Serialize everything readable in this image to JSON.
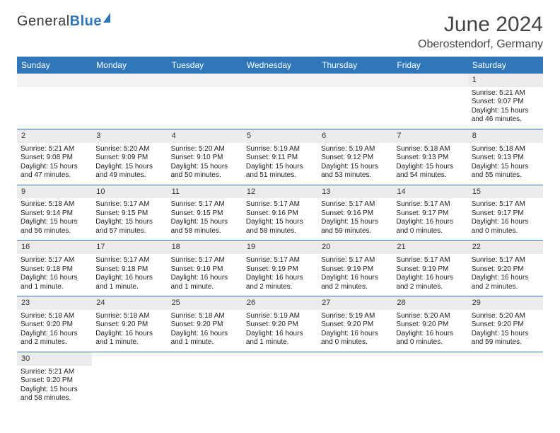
{
  "logo": {
    "word1": "General",
    "word2": "Blue"
  },
  "title": "June 2024",
  "subtitle": "Oberostendorf, Germany",
  "columns": [
    "Sunday",
    "Monday",
    "Tuesday",
    "Wednesday",
    "Thursday",
    "Friday",
    "Saturday"
  ],
  "colors": {
    "header_bg": "#2f77b8",
    "header_text": "#ffffff",
    "daynum_bg": "#ececec",
    "row_border": "#2f77b8",
    "empty_bg": "#f2f2f2",
    "text": "#222222",
    "title_text": "#444444"
  },
  "typography": {
    "title_fontsize": 30,
    "subtitle_fontsize": 16,
    "header_fontsize": 12,
    "cell_fontsize": 10,
    "daynum_fontsize": 11
  },
  "weeks": [
    [
      null,
      null,
      null,
      null,
      null,
      null,
      {
        "day": "1",
        "sunrise": "Sunrise: 5:21 AM",
        "sunset": "Sunset: 9:07 PM",
        "daylight": "Daylight: 15 hours and 46 minutes."
      }
    ],
    [
      {
        "day": "2",
        "sunrise": "Sunrise: 5:21 AM",
        "sunset": "Sunset: 9:08 PM",
        "daylight": "Daylight: 15 hours and 47 minutes."
      },
      {
        "day": "3",
        "sunrise": "Sunrise: 5:20 AM",
        "sunset": "Sunset: 9:09 PM",
        "daylight": "Daylight: 15 hours and 49 minutes."
      },
      {
        "day": "4",
        "sunrise": "Sunrise: 5:20 AM",
        "sunset": "Sunset: 9:10 PM",
        "daylight": "Daylight: 15 hours and 50 minutes."
      },
      {
        "day": "5",
        "sunrise": "Sunrise: 5:19 AM",
        "sunset": "Sunset: 9:11 PM",
        "daylight": "Daylight: 15 hours and 51 minutes."
      },
      {
        "day": "6",
        "sunrise": "Sunrise: 5:19 AM",
        "sunset": "Sunset: 9:12 PM",
        "daylight": "Daylight: 15 hours and 53 minutes."
      },
      {
        "day": "7",
        "sunrise": "Sunrise: 5:18 AM",
        "sunset": "Sunset: 9:13 PM",
        "daylight": "Daylight: 15 hours and 54 minutes."
      },
      {
        "day": "8",
        "sunrise": "Sunrise: 5:18 AM",
        "sunset": "Sunset: 9:13 PM",
        "daylight": "Daylight: 15 hours and 55 minutes."
      }
    ],
    [
      {
        "day": "9",
        "sunrise": "Sunrise: 5:18 AM",
        "sunset": "Sunset: 9:14 PM",
        "daylight": "Daylight: 15 hours and 56 minutes."
      },
      {
        "day": "10",
        "sunrise": "Sunrise: 5:17 AM",
        "sunset": "Sunset: 9:15 PM",
        "daylight": "Daylight: 15 hours and 57 minutes."
      },
      {
        "day": "11",
        "sunrise": "Sunrise: 5:17 AM",
        "sunset": "Sunset: 9:15 PM",
        "daylight": "Daylight: 15 hours and 58 minutes."
      },
      {
        "day": "12",
        "sunrise": "Sunrise: 5:17 AM",
        "sunset": "Sunset: 9:16 PM",
        "daylight": "Daylight: 15 hours and 58 minutes."
      },
      {
        "day": "13",
        "sunrise": "Sunrise: 5:17 AM",
        "sunset": "Sunset: 9:16 PM",
        "daylight": "Daylight: 15 hours and 59 minutes."
      },
      {
        "day": "14",
        "sunrise": "Sunrise: 5:17 AM",
        "sunset": "Sunset: 9:17 PM",
        "daylight": "Daylight: 16 hours and 0 minutes."
      },
      {
        "day": "15",
        "sunrise": "Sunrise: 5:17 AM",
        "sunset": "Sunset: 9:17 PM",
        "daylight": "Daylight: 16 hours and 0 minutes."
      }
    ],
    [
      {
        "day": "16",
        "sunrise": "Sunrise: 5:17 AM",
        "sunset": "Sunset: 9:18 PM",
        "daylight": "Daylight: 16 hours and 1 minute."
      },
      {
        "day": "17",
        "sunrise": "Sunrise: 5:17 AM",
        "sunset": "Sunset: 9:18 PM",
        "daylight": "Daylight: 16 hours and 1 minute."
      },
      {
        "day": "18",
        "sunrise": "Sunrise: 5:17 AM",
        "sunset": "Sunset: 9:19 PM",
        "daylight": "Daylight: 16 hours and 1 minute."
      },
      {
        "day": "19",
        "sunrise": "Sunrise: 5:17 AM",
        "sunset": "Sunset: 9:19 PM",
        "daylight": "Daylight: 16 hours and 2 minutes."
      },
      {
        "day": "20",
        "sunrise": "Sunrise: 5:17 AM",
        "sunset": "Sunset: 9:19 PM",
        "daylight": "Daylight: 16 hours and 2 minutes."
      },
      {
        "day": "21",
        "sunrise": "Sunrise: 5:17 AM",
        "sunset": "Sunset: 9:19 PM",
        "daylight": "Daylight: 16 hours and 2 minutes."
      },
      {
        "day": "22",
        "sunrise": "Sunrise: 5:17 AM",
        "sunset": "Sunset: 9:20 PM",
        "daylight": "Daylight: 16 hours and 2 minutes."
      }
    ],
    [
      {
        "day": "23",
        "sunrise": "Sunrise: 5:18 AM",
        "sunset": "Sunset: 9:20 PM",
        "daylight": "Daylight: 16 hours and 2 minutes."
      },
      {
        "day": "24",
        "sunrise": "Sunrise: 5:18 AM",
        "sunset": "Sunset: 9:20 PM",
        "daylight": "Daylight: 16 hours and 1 minute."
      },
      {
        "day": "25",
        "sunrise": "Sunrise: 5:18 AM",
        "sunset": "Sunset: 9:20 PM",
        "daylight": "Daylight: 16 hours and 1 minute."
      },
      {
        "day": "26",
        "sunrise": "Sunrise: 5:19 AM",
        "sunset": "Sunset: 9:20 PM",
        "daylight": "Daylight: 16 hours and 1 minute."
      },
      {
        "day": "27",
        "sunrise": "Sunrise: 5:19 AM",
        "sunset": "Sunset: 9:20 PM",
        "daylight": "Daylight: 16 hours and 0 minutes."
      },
      {
        "day": "28",
        "sunrise": "Sunrise: 5:20 AM",
        "sunset": "Sunset: 9:20 PM",
        "daylight": "Daylight: 16 hours and 0 minutes."
      },
      {
        "day": "29",
        "sunrise": "Sunrise: 5:20 AM",
        "sunset": "Sunset: 9:20 PM",
        "daylight": "Daylight: 15 hours and 59 minutes."
      }
    ],
    [
      {
        "day": "30",
        "sunrise": "Sunrise: 5:21 AM",
        "sunset": "Sunset: 9:20 PM",
        "daylight": "Daylight: 15 hours and 58 minutes."
      },
      null,
      null,
      null,
      null,
      null,
      null
    ]
  ]
}
